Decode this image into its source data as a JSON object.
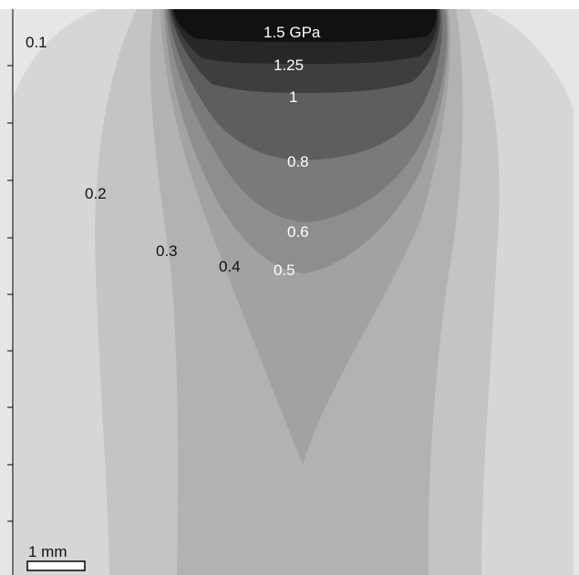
{
  "figure": {
    "unit": "GPa",
    "contours": [
      {
        "label": "1.5 GPa",
        "value": 1.5,
        "tone": "light"
      },
      {
        "label": "1.25",
        "value": 1.25,
        "tone": "light"
      },
      {
        "label": "1",
        "value": 1.0,
        "tone": "light"
      },
      {
        "label": "0.8",
        "value": 0.8,
        "tone": "light"
      },
      {
        "label": "0.6",
        "value": 0.6,
        "tone": "light"
      },
      {
        "label": "0.5",
        "value": 0.5,
        "tone": "light"
      },
      {
        "label": "0.4",
        "value": 0.4,
        "tone": "dark"
      },
      {
        "label": "0.3",
        "value": 0.3,
        "tone": "dark"
      },
      {
        "label": "0.2",
        "value": 0.2,
        "tone": "dark"
      },
      {
        "label": "0.1",
        "value": 0.1,
        "tone": "dark"
      }
    ],
    "scale_bar": {
      "label": "1 mm"
    },
    "colors": {
      "background": "#e6e6e6",
      "band_0_1": "#d6d6d6",
      "band_0_2": "#c4c4c4",
      "band_0_3": "#b2b2b2",
      "band_0_4": "#a2a2a2",
      "band_0_5": "#8e8e8e",
      "band_0_6": "#7a7a7a",
      "band_0_8": "#5e5e5e",
      "band_1": "#3e3e3e",
      "band_1_25": "#272727",
      "band_1_5": "#111111"
    }
  }
}
